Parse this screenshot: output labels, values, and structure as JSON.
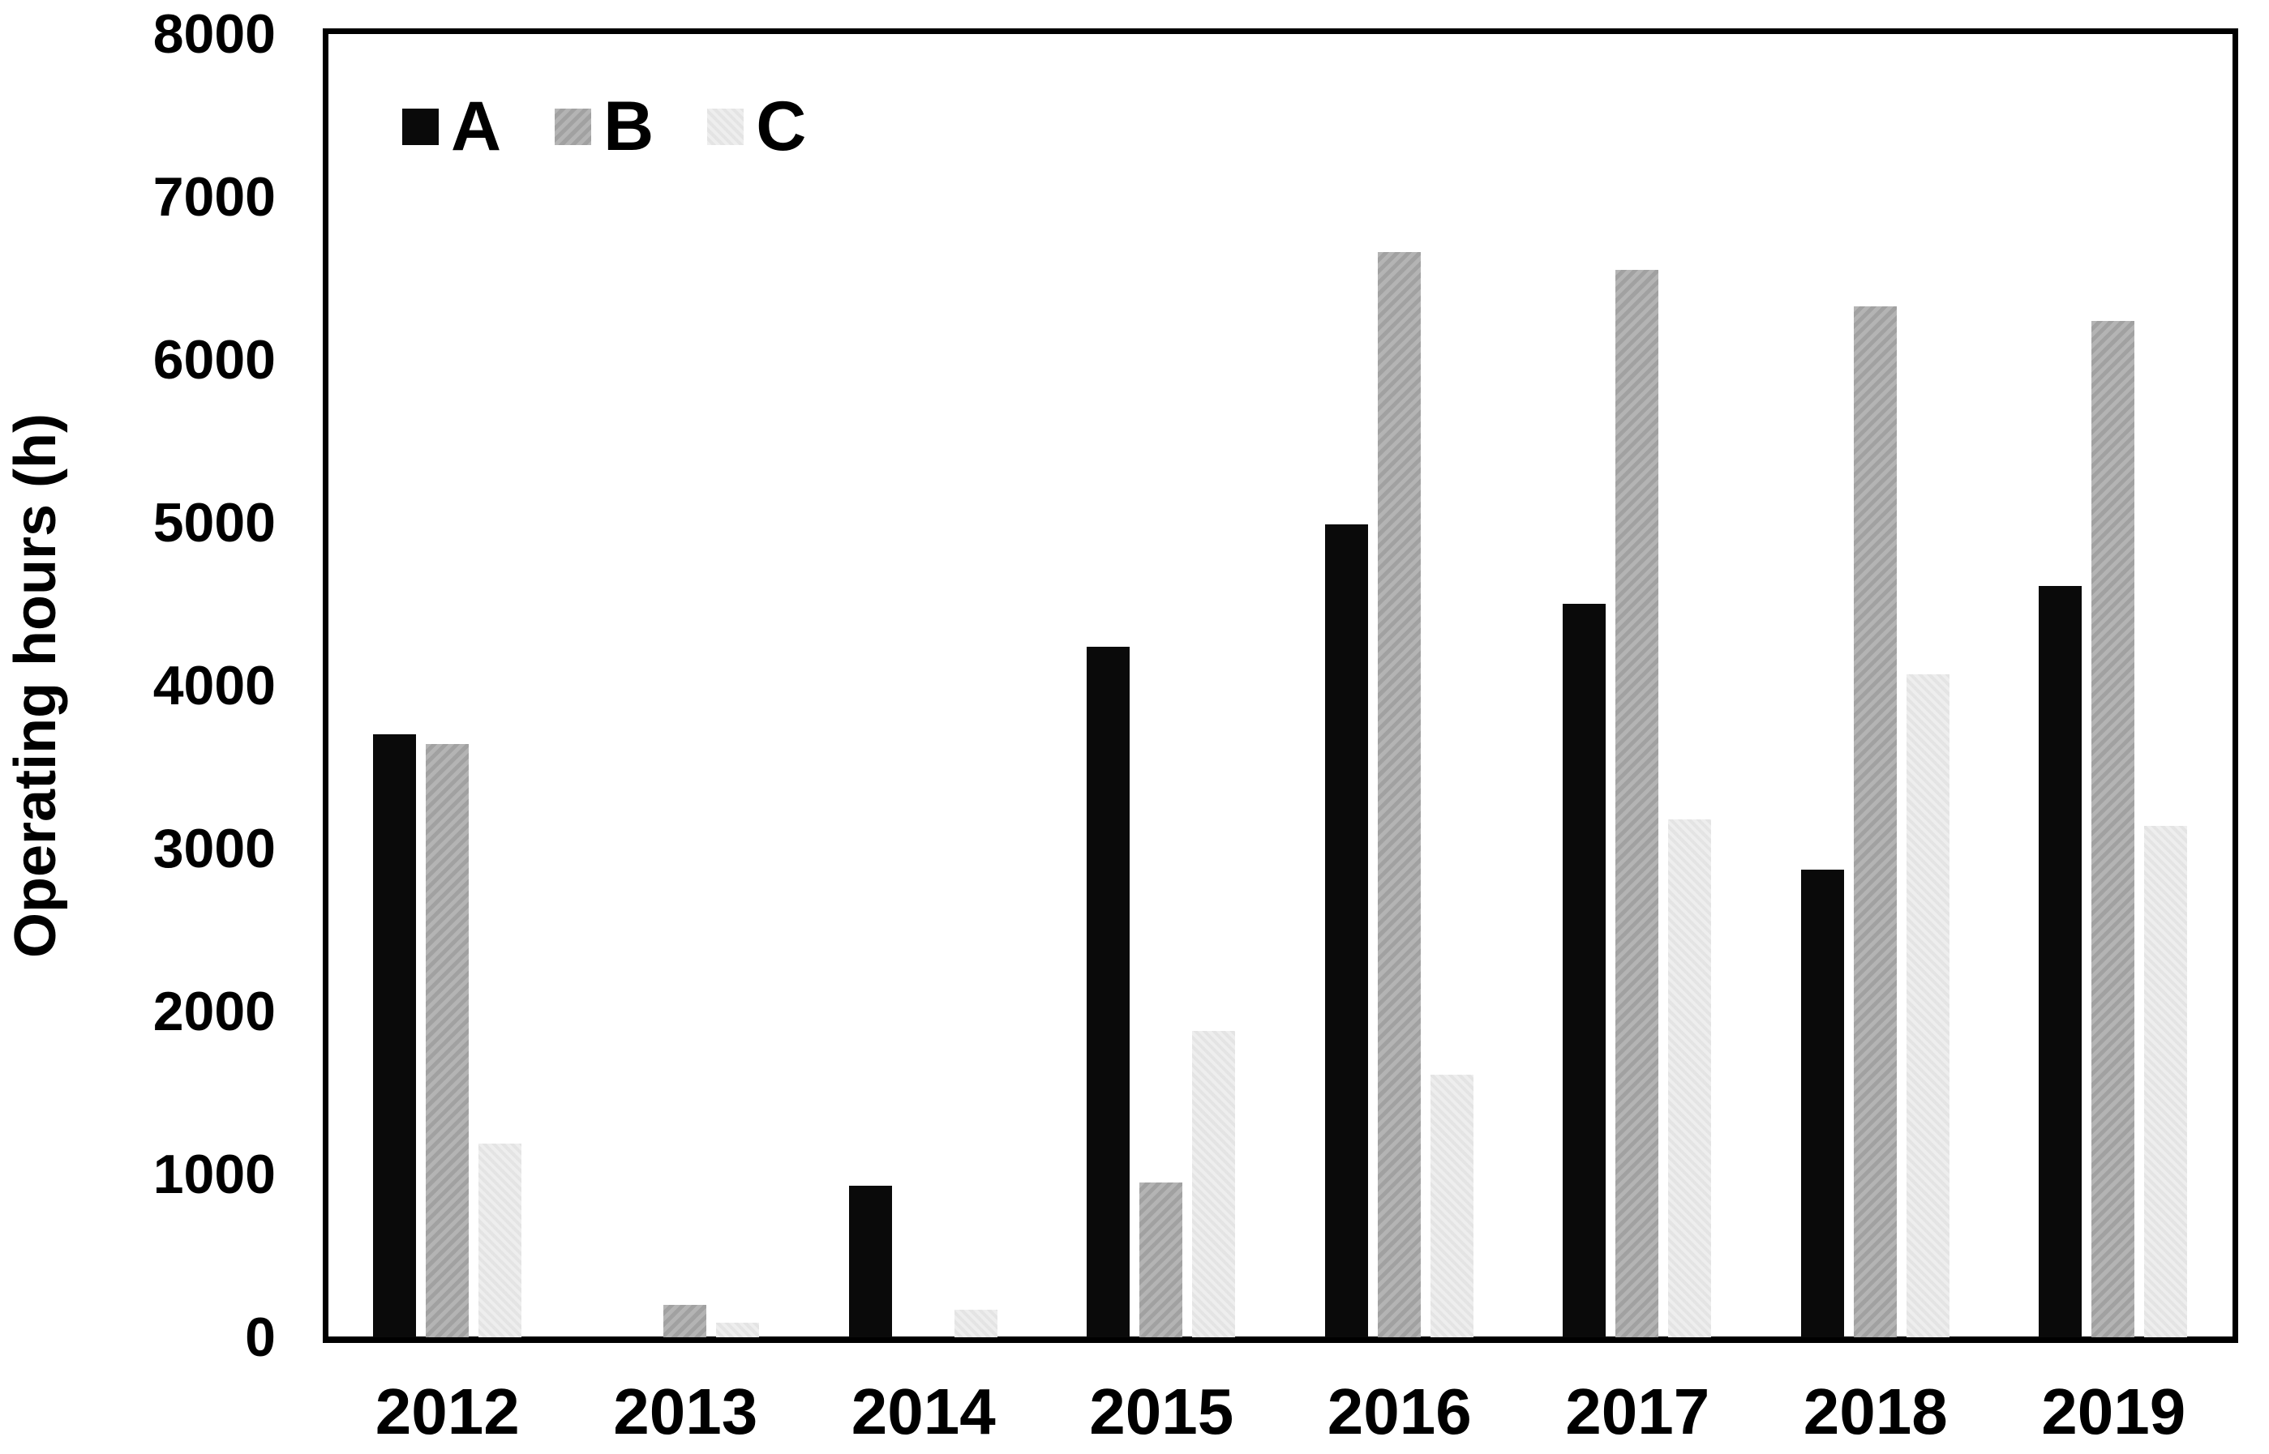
{
  "chart_data": {
    "type": "bar",
    "title": "",
    "xlabel": "",
    "ylabel": "Operating hours (h)",
    "ylim": [
      0,
      8000
    ],
    "ytick_interval": 1000,
    "yticks": [
      0,
      1000,
      2000,
      3000,
      4000,
      5000,
      6000,
      7000,
      8000
    ],
    "grid": false,
    "legend_position": "top-left",
    "background_color": "#ffffff",
    "axis_color": "#000000",
    "text_color": "#000000",
    "categories": [
      "2012",
      "2013",
      "2014",
      "2015",
      "2016",
      "2017",
      "2018",
      "2019"
    ],
    "series": [
      {
        "name": "A",
        "color": "#0a0a0a",
        "values": [
          3700,
          0,
          930,
          4240,
          4990,
          4500,
          2870,
          4610
        ]
      },
      {
        "name": "B",
        "color": "#ababab",
        "values": [
          3640,
          200,
          0,
          950,
          6660,
          6550,
          6330,
          6240
        ]
      },
      {
        "name": "C",
        "color": "#e8e8e8",
        "values": [
          1190,
          90,
          170,
          1880,
          1610,
          3180,
          4070,
          3140
        ]
      }
    ]
  }
}
